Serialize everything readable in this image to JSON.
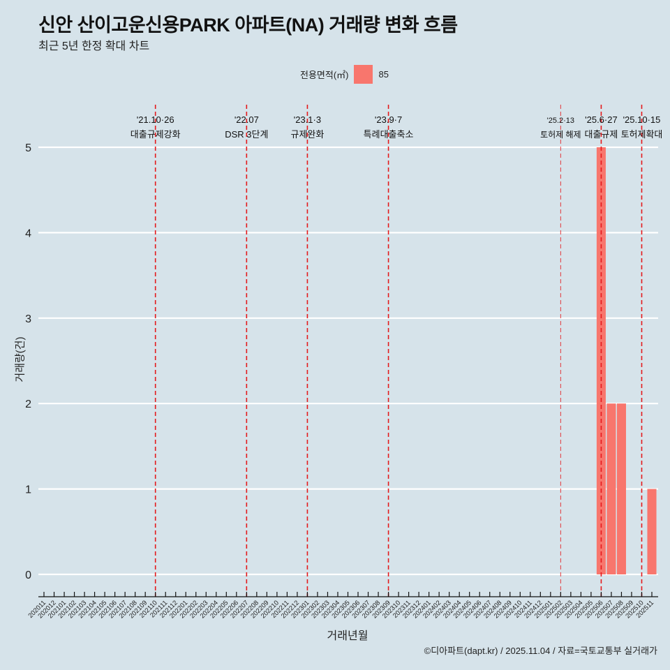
{
  "header": {
    "title": "신안 산이고운신용PARK 아파트(NA) 거래량 변화 흐름",
    "subtitle": "최근 5년 한정 확대 차트"
  },
  "legend": {
    "title": "전용면적(㎡)",
    "items": [
      {
        "label": "85",
        "color": "#f8766d"
      }
    ]
  },
  "axes": {
    "xlabel": "거래년월",
    "ylabel": "거래량(건)"
  },
  "caption": "©디아파트(dapt.kr) / 2025.11.04 / 자료=국토교통부 실거래가",
  "colors": {
    "background": "#d6e3ea",
    "bar": "#f8766d",
    "event_line": "#e41a1c",
    "grid": "#ffffff"
  },
  "chart_data": {
    "type": "bar",
    "title": "신안 산이고운신용PARK 아파트(NA) 거래량 변화 흐름",
    "subtitle": "최근 5년 한정 확대 차트",
    "xlabel": "거래년월",
    "ylabel": "거래량(건)",
    "ylim": [
      0,
      5
    ],
    "yticks": [
      0,
      1,
      2,
      3,
      4,
      5
    ],
    "grid": "horizontal",
    "legend_position": "top",
    "categories": [
      "202011",
      "202012",
      "202101",
      "202102",
      "202103",
      "202104",
      "202105",
      "202106",
      "202107",
      "202108",
      "202109",
      "202110",
      "202111",
      "202112",
      "202201",
      "202202",
      "202203",
      "202204",
      "202205",
      "202206",
      "202207",
      "202208",
      "202209",
      "202210",
      "202211",
      "202212",
      "202301",
      "202302",
      "202303",
      "202304",
      "202305",
      "202306",
      "202307",
      "202308",
      "202309",
      "202310",
      "202311",
      "202312",
      "202401",
      "202402",
      "202403",
      "202404",
      "202405",
      "202406",
      "202407",
      "202408",
      "202409",
      "202410",
      "202411",
      "202412",
      "202501",
      "202502",
      "202503",
      "202504",
      "202505",
      "202506",
      "202507",
      "202508",
      "202509",
      "202510",
      "202511"
    ],
    "series": [
      {
        "name": "85",
        "color": "#f8766d",
        "values": [
          0,
          0,
          0,
          0,
          0,
          0,
          0,
          0,
          0,
          0,
          0,
          0,
          0,
          0,
          0,
          0,
          0,
          0,
          0,
          0,
          0,
          0,
          0,
          0,
          0,
          0,
          0,
          0,
          0,
          0,
          0,
          0,
          0,
          0,
          0,
          0,
          0,
          0,
          0,
          0,
          0,
          0,
          0,
          0,
          0,
          0,
          0,
          0,
          0,
          0,
          0,
          0,
          0,
          0,
          0,
          5,
          2,
          2,
          0,
          0,
          1
        ]
      }
    ],
    "annotations": [
      {
        "x": "202110",
        "date": "'21.10·26",
        "label": "대출규제강화"
      },
      {
        "x": "202207",
        "date": "'22.07",
        "label": "DSR 3단계"
      },
      {
        "x": "202301",
        "date": "'23.1·3",
        "label": "규제완화"
      },
      {
        "x": "202309",
        "date": "'23.9·7",
        "label": "특례대출축소"
      },
      {
        "x": "202502",
        "date": "'25.2·13",
        "label": "토허제 해제",
        "thin": true
      },
      {
        "x": "202506",
        "date": "'25.6·27",
        "label": "대출규제"
      },
      {
        "x": "202510",
        "date": "'25.10·15",
        "label": "토허제확대"
      }
    ]
  }
}
